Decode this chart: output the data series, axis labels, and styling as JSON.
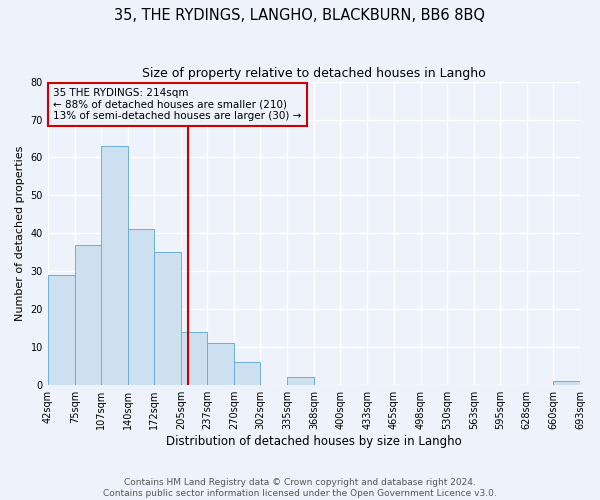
{
  "title": "35, THE RYDINGS, LANGHO, BLACKBURN, BB6 8BQ",
  "subtitle": "Size of property relative to detached houses in Langho",
  "xlabel": "Distribution of detached houses by size in Langho",
  "ylabel": "Number of detached properties",
  "bar_edges": [
    42,
    75,
    107,
    140,
    172,
    205,
    237,
    270,
    302,
    335,
    368,
    400,
    433,
    465,
    498,
    530,
    563,
    595,
    628,
    660,
    693
  ],
  "bar_heights": [
    29,
    37,
    63,
    41,
    35,
    14,
    11,
    6,
    0,
    2,
    0,
    0,
    0,
    0,
    0,
    0,
    0,
    0,
    0,
    1
  ],
  "bar_color": "#cce0f0",
  "bar_edgecolor": "#6baed6",
  "property_line_x": 214,
  "property_line_color": "#cc0000",
  "annotation_line1": "35 THE RYDINGS: 214sqm",
  "annotation_line2": "← 88% of detached houses are smaller (210)",
  "annotation_line3": "13% of semi-detached houses are larger (30) →",
  "annotation_box_edgecolor": "#cc0000",
  "ylim": [
    0,
    80
  ],
  "yticks": [
    0,
    10,
    20,
    30,
    40,
    50,
    60,
    70,
    80
  ],
  "background_color": "#eef2fa",
  "grid_color": "#ffffff",
  "footer_line1": "Contains HM Land Registry data © Crown copyright and database right 2024.",
  "footer_line2": "Contains public sector information licensed under the Open Government Licence v3.0.",
  "title_fontsize": 10.5,
  "subtitle_fontsize": 9,
  "xlabel_fontsize": 8.5,
  "ylabel_fontsize": 8,
  "tick_fontsize": 7,
  "annotation_fontsize": 7.5,
  "footer_fontsize": 6.5
}
